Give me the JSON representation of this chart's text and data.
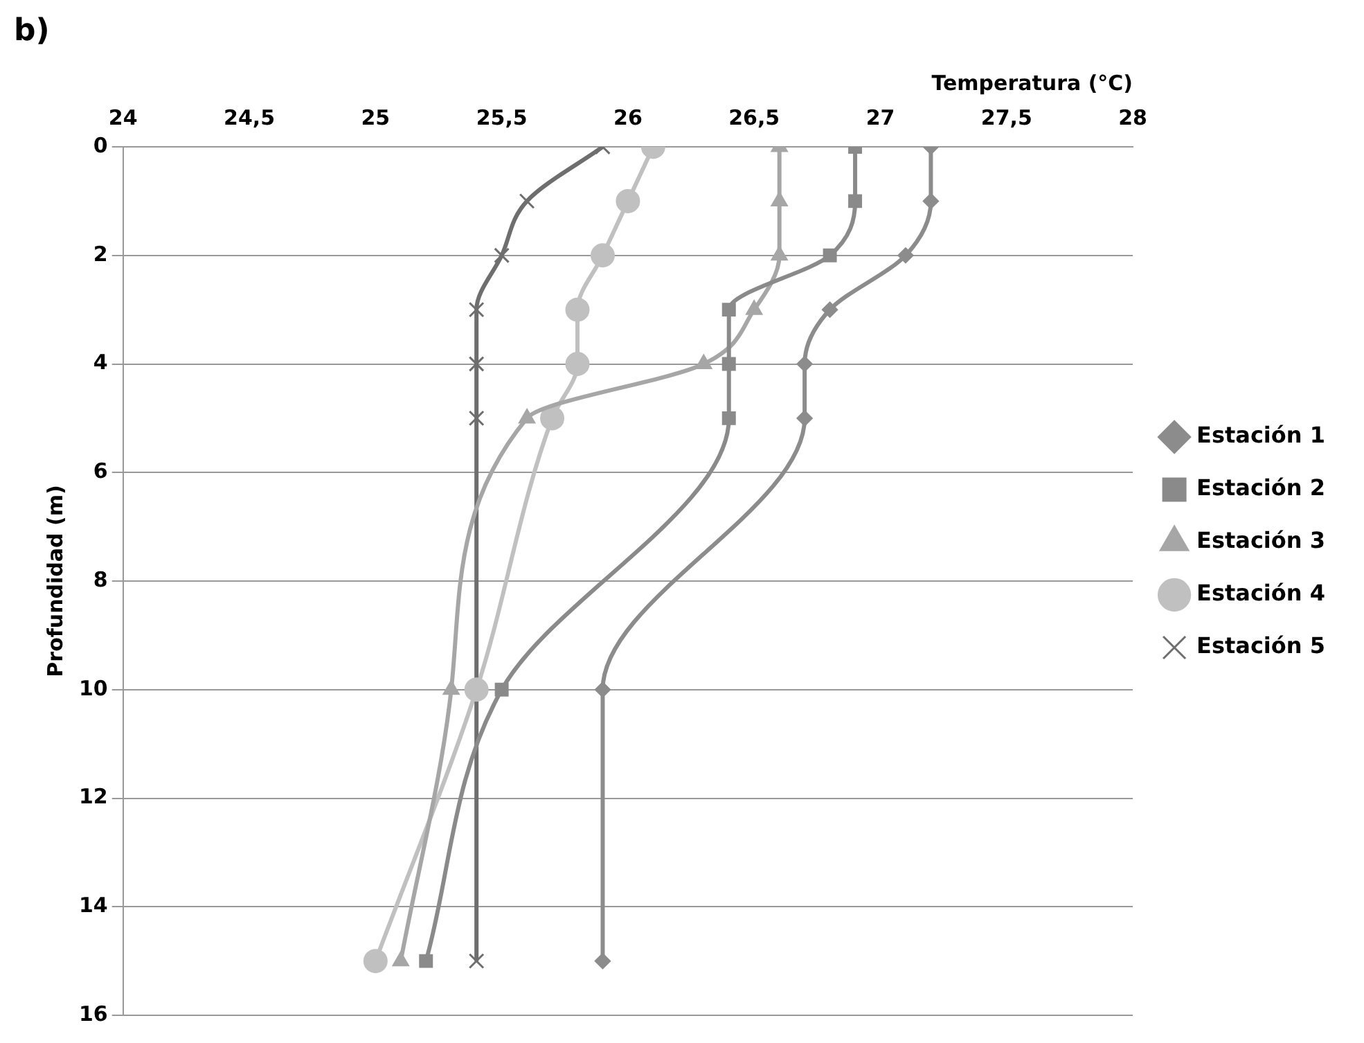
{
  "chart_data": {
    "type": "line",
    "xlabel": "Temperatura (°C)",
    "ylabel": "Profundidad (m)",
    "annotations": [
      "b)"
    ],
    "xlim": [
      24,
      28
    ],
    "xticks": [
      24,
      {
        "value": 24.5,
        "label": "24,5"
      },
      25,
      {
        "value": 25.5,
        "label": "25,5"
      },
      26,
      {
        "value": 26.5,
        "label": "26,5"
      },
      27,
      {
        "value": 27.5,
        "label": "27,5"
      },
      28
    ],
    "ylim": [
      16,
      0
    ],
    "yticks": [
      0,
      2,
      4,
      6,
      8,
      10,
      12,
      14,
      16
    ],
    "grid": "y",
    "legend": "right",
    "series": [
      {
        "name": "Estación 1",
        "color": "#8c8c8c",
        "marker": "diamond",
        "x": [
          27.2,
          27.2,
          27.1,
          26.8,
          26.7,
          26.7,
          25.9,
          25.9
        ],
        "values": [
          0,
          1,
          2,
          3,
          4,
          5,
          10,
          15
        ]
      },
      {
        "name": "Estación 2",
        "color": "#8a8a8a",
        "marker": "square",
        "x": [
          26.9,
          26.9,
          26.8,
          26.4,
          26.4,
          26.4,
          25.5,
          25.2
        ],
        "values": [
          0,
          1,
          2,
          3,
          4,
          5,
          10,
          15
        ]
      },
      {
        "name": "Estación 3",
        "color": "#a6a6a6",
        "marker": "triangle",
        "x": [
          26.6,
          26.6,
          26.6,
          26.5,
          26.3,
          25.6,
          25.3,
          25.1
        ],
        "values": [
          0,
          1,
          2,
          3,
          4,
          5,
          10,
          15
        ]
      },
      {
        "name": "Estación 4",
        "color": "#c0c0c0",
        "marker": "circle",
        "x": [
          26.1,
          26.0,
          25.9,
          25.8,
          25.8,
          25.7,
          25.4,
          25.0
        ],
        "values": [
          0,
          1,
          2,
          3,
          4,
          5,
          10,
          15
        ]
      },
      {
        "name": "Estación 5",
        "color": "#6e6e6e",
        "marker": "cross",
        "x": [
          25.9,
          25.6,
          25.5,
          25.4,
          25.4,
          25.4,
          25.4,
          25.4
        ],
        "values": [
          0,
          1,
          2,
          3,
          4,
          5,
          10,
          15
        ]
      }
    ]
  }
}
